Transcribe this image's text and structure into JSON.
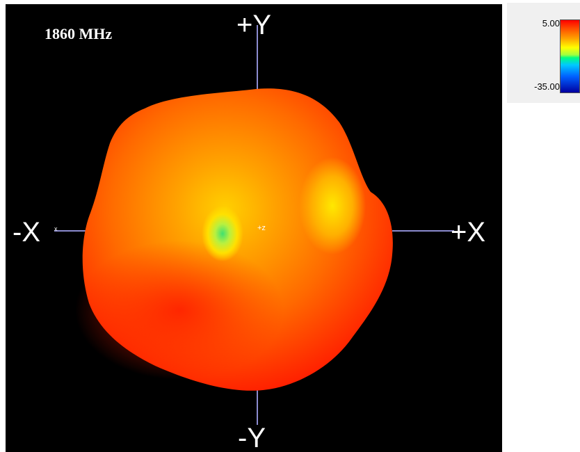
{
  "plot": {
    "frequency_label": "1860 MHz",
    "axis_labels": {
      "pos_y": "+Y",
      "neg_y": "-Y",
      "neg_x": "-X",
      "pos_x": "+X",
      "pos_z": "+z",
      "x_small": "x"
    }
  },
  "legend": {
    "max_value": "5.00",
    "min_value": "-35.00"
  },
  "colors": {
    "background": "#000000",
    "axis_line": "#8c8cd0",
    "pattern_outer": "#ff2400",
    "pattern_mid": "#ff7a00",
    "pattern_hot": "#ffd200",
    "pattern_peak": "#40e070"
  }
}
